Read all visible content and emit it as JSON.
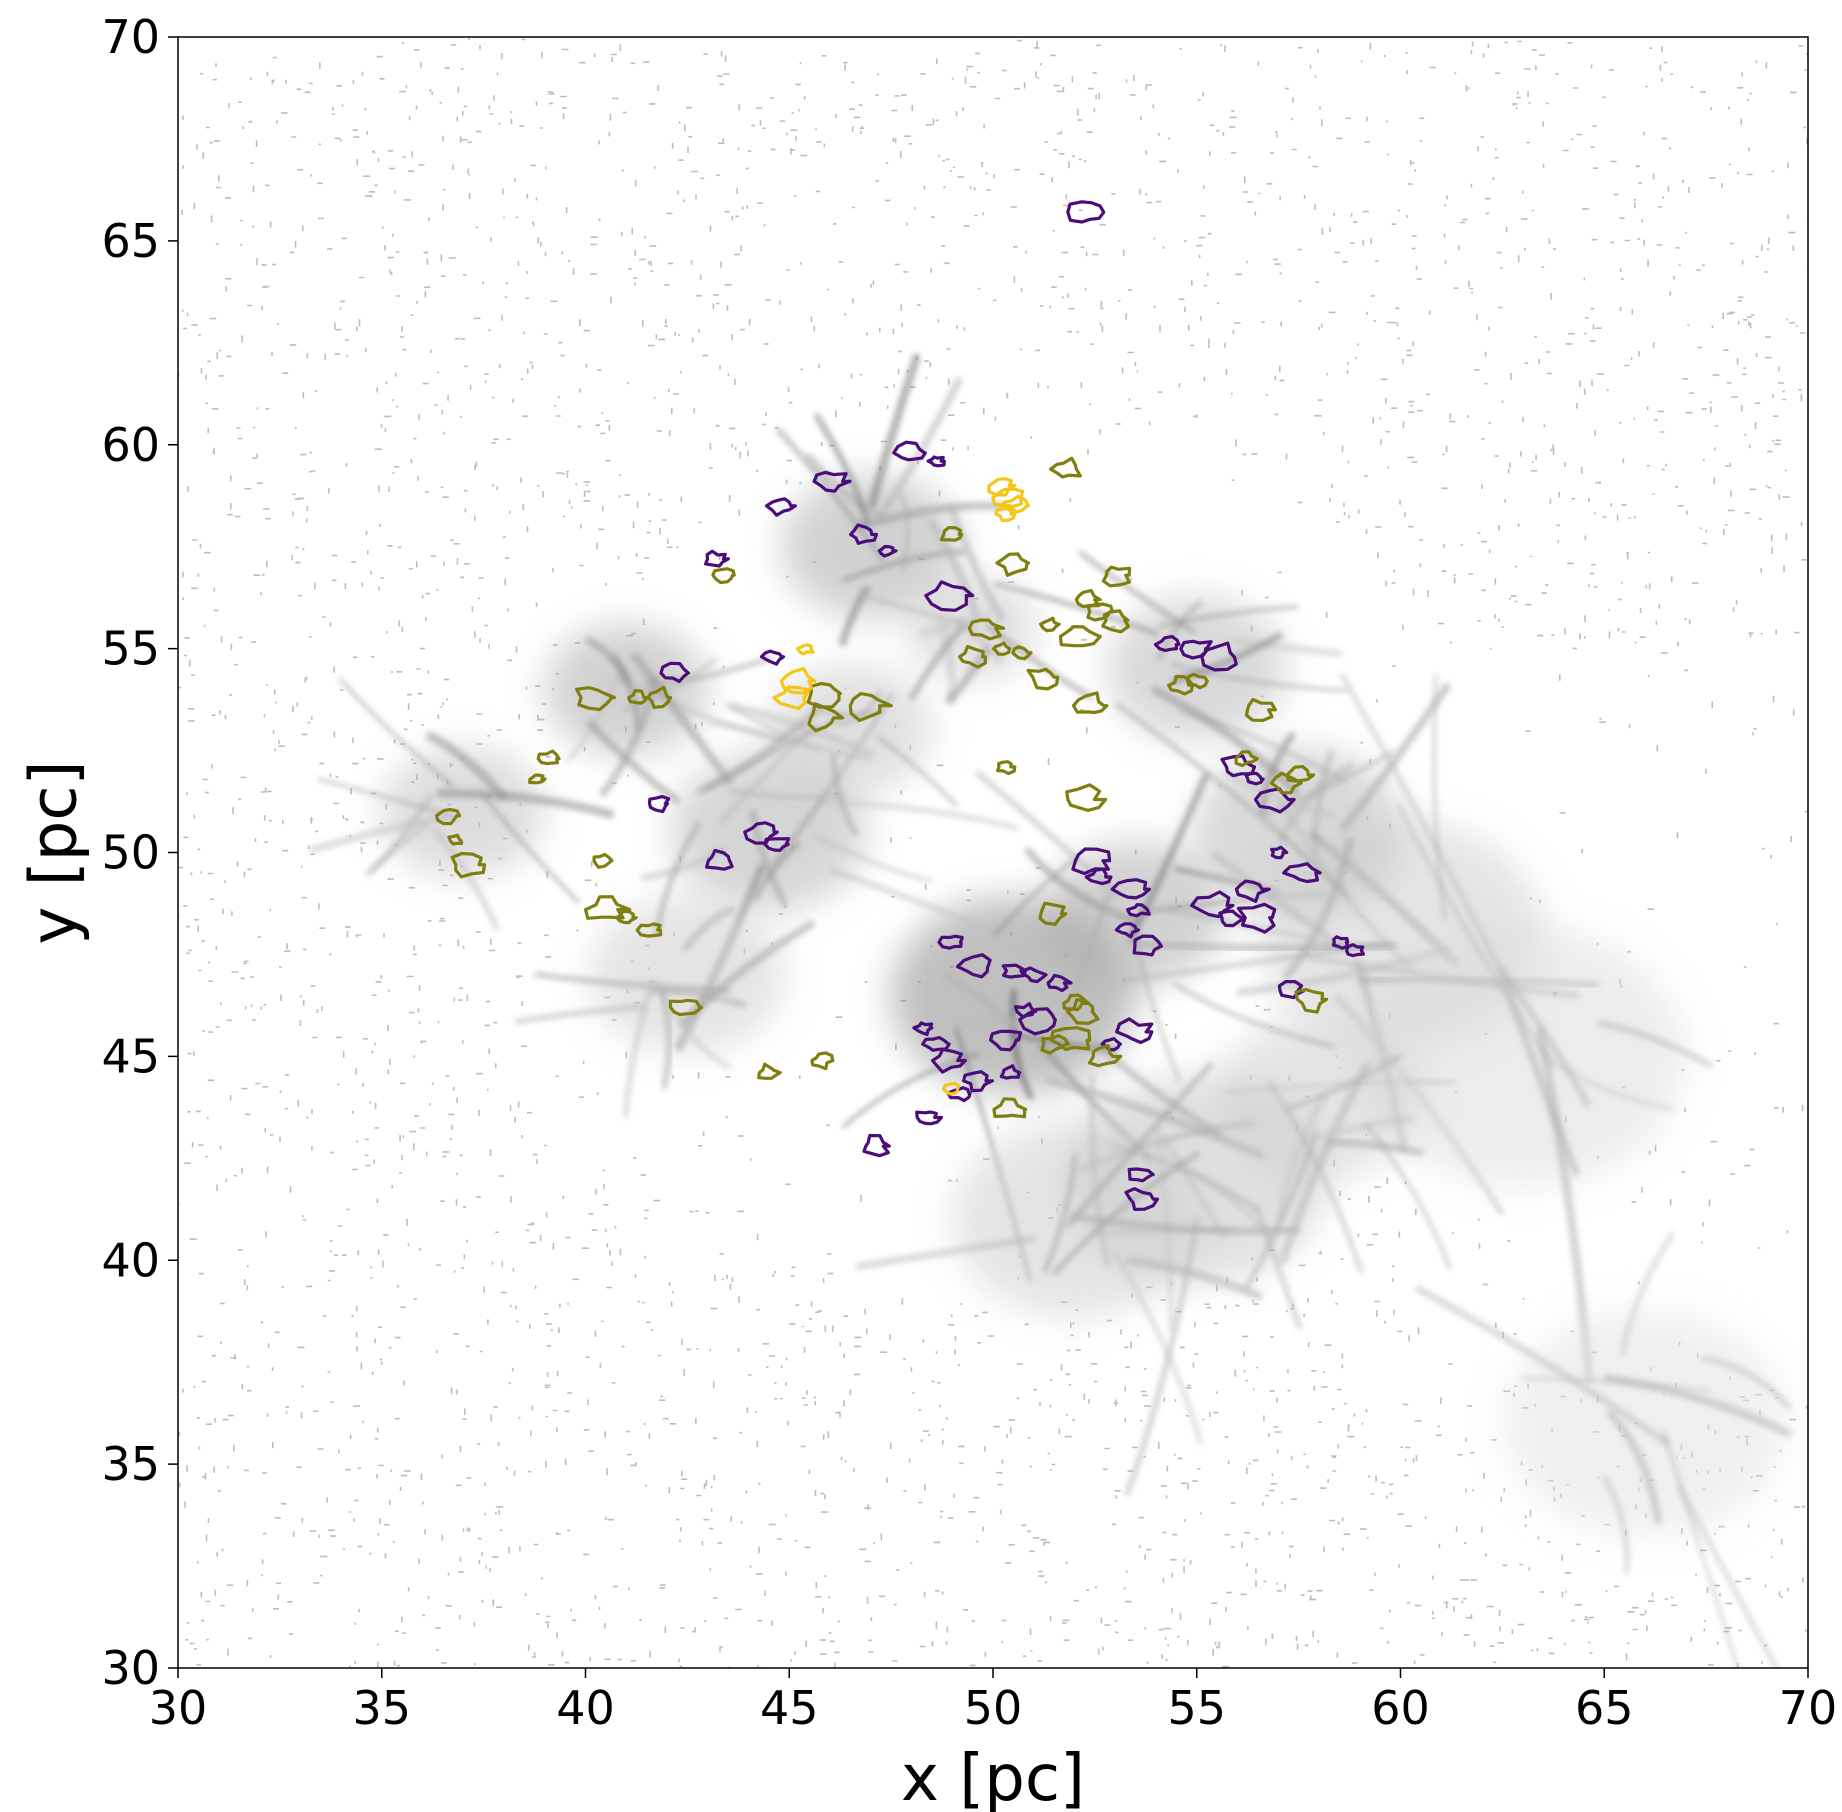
{
  "chart_data": {
    "type": "heatmap",
    "title": "",
    "xlabel": "x [pc]",
    "ylabel": "y [pc]",
    "xlim": [
      30,
      70
    ],
    "ylim": [
      30,
      70
    ],
    "xticks": [
      30,
      35,
      40,
      45,
      50,
      55,
      60,
      65,
      70
    ],
    "yticks": [
      30,
      35,
      40,
      45,
      50,
      55,
      60,
      65,
      70
    ],
    "grid": false,
    "legend": "none",
    "colormap": "greys",
    "colors": {
      "background": "#ffffff",
      "density_dark": "#3a3a3a",
      "low_density_contour": "#bdbdbd",
      "contour_purple": "#4b0d7a",
      "contour_olive": "#7f7f10",
      "contour_yellow": "#f5c518"
    },
    "density_features": [
      {
        "x": 50.5,
        "y": 46.5,
        "strength": 0.85,
        "r": 3.0
      },
      {
        "x": 47.0,
        "y": 57.5,
        "strength": 0.6,
        "r": 2.2
      },
      {
        "x": 41.0,
        "y": 54.0,
        "strength": 0.6,
        "r": 2.0
      },
      {
        "x": 44.5,
        "y": 50.5,
        "strength": 0.55,
        "r": 2.4
      },
      {
        "x": 53.5,
        "y": 48.5,
        "strength": 0.6,
        "r": 2.2
      },
      {
        "x": 57.5,
        "y": 50.5,
        "strength": 0.5,
        "r": 2.6
      },
      {
        "x": 55.0,
        "y": 54.5,
        "strength": 0.5,
        "r": 2.2
      },
      {
        "x": 60.0,
        "y": 48.0,
        "strength": 0.35,
        "r": 3.5
      },
      {
        "x": 55.0,
        "y": 42.0,
        "strength": 0.4,
        "r": 3.2
      },
      {
        "x": 52.0,
        "y": 41.0,
        "strength": 0.35,
        "r": 3.0
      },
      {
        "x": 37.0,
        "y": 51.0,
        "strength": 0.45,
        "r": 2.0
      },
      {
        "x": 42.5,
        "y": 47.0,
        "strength": 0.35,
        "r": 2.4
      },
      {
        "x": 46.5,
        "y": 53.0,
        "strength": 0.4,
        "r": 2.0
      },
      {
        "x": 63.0,
        "y": 45.0,
        "strength": 0.25,
        "r": 4.0
      },
      {
        "x": 66.0,
        "y": 36.0,
        "strength": 0.2,
        "r": 3.5
      },
      {
        "x": 49.5,
        "y": 55.5,
        "strength": 0.4,
        "r": 1.6
      },
      {
        "x": 58.0,
        "y": 44.0,
        "strength": 0.35,
        "r": 2.5
      }
    ],
    "contours": {
      "purple": [
        [
          52.3,
          65.7
        ],
        [
          48.0,
          59.8
        ],
        [
          48.6,
          59.6
        ],
        [
          46.0,
          59.1
        ],
        [
          44.8,
          58.5
        ],
        [
          46.8,
          57.8
        ],
        [
          47.4,
          57.4
        ],
        [
          43.2,
          57.2
        ],
        [
          48.9,
          56.3
        ],
        [
          44.6,
          54.8
        ],
        [
          42.2,
          54.4
        ],
        [
          54.3,
          55.1
        ],
        [
          55.0,
          55.0
        ],
        [
          55.6,
          54.8
        ],
        [
          56.0,
          52.1
        ],
        [
          56.4,
          51.8
        ],
        [
          56.9,
          51.3
        ],
        [
          57.0,
          50.0
        ],
        [
          57.6,
          49.5
        ],
        [
          56.3,
          49.1
        ],
        [
          41.8,
          51.2
        ],
        [
          43.3,
          49.8
        ],
        [
          44.3,
          50.5
        ],
        [
          44.7,
          50.2
        ],
        [
          53.4,
          49.1
        ],
        [
          53.6,
          48.6
        ],
        [
          53.3,
          48.1
        ],
        [
          53.8,
          47.7
        ],
        [
          55.4,
          48.7
        ],
        [
          55.8,
          48.4
        ],
        [
          56.5,
          48.4
        ],
        [
          58.5,
          47.8
        ],
        [
          58.9,
          47.6
        ],
        [
          57.3,
          46.6
        ],
        [
          49.0,
          47.8
        ],
        [
          49.6,
          47.2
        ],
        [
          50.5,
          47.1
        ],
        [
          51.0,
          47.0
        ],
        [
          51.6,
          46.8
        ],
        [
          51.2,
          45.9
        ],
        [
          50.8,
          46.1
        ],
        [
          48.3,
          45.7
        ],
        [
          48.6,
          45.3
        ],
        [
          48.9,
          44.9
        ],
        [
          50.3,
          45.4
        ],
        [
          50.4,
          44.6
        ],
        [
          49.6,
          44.4
        ],
        [
          49.2,
          44.1
        ],
        [
          48.4,
          43.5
        ],
        [
          53.5,
          45.6
        ],
        [
          52.9,
          45.3
        ],
        [
          53.6,
          42.1
        ],
        [
          53.6,
          41.5
        ],
        [
          47.1,
          42.8
        ],
        [
          52.4,
          49.8
        ],
        [
          52.6,
          49.4
        ]
      ],
      "olive": [
        [
          51.8,
          59.4
        ],
        [
          49.0,
          57.8
        ],
        [
          50.5,
          57.1
        ],
        [
          53.0,
          56.8
        ],
        [
          43.4,
          56.8
        ],
        [
          52.3,
          56.2
        ],
        [
          52.6,
          55.9
        ],
        [
          51.4,
          55.6
        ],
        [
          52.1,
          55.3
        ],
        [
          53.0,
          55.7
        ],
        [
          49.8,
          55.5
        ],
        [
          50.2,
          55.0
        ],
        [
          50.7,
          54.9
        ],
        [
          49.5,
          54.8
        ],
        [
          51.2,
          54.3
        ],
        [
          52.4,
          53.6
        ],
        [
          54.6,
          54.1
        ],
        [
          55.0,
          54.2
        ],
        [
          41.3,
          53.8
        ],
        [
          41.8,
          53.8
        ],
        [
          40.2,
          53.8
        ],
        [
          45.9,
          53.9
        ],
        [
          46.9,
          53.6
        ],
        [
          45.8,
          53.3
        ],
        [
          39.1,
          52.3
        ],
        [
          38.8,
          51.8
        ],
        [
          50.3,
          52.1
        ],
        [
          52.2,
          51.3
        ],
        [
          36.6,
          50.9
        ],
        [
          36.8,
          50.3
        ],
        [
          37.1,
          49.7
        ],
        [
          56.2,
          52.3
        ],
        [
          57.2,
          51.7
        ],
        [
          57.5,
          51.9
        ],
        [
          56.5,
          53.5
        ],
        [
          40.4,
          49.8
        ],
        [
          40.5,
          48.6
        ],
        [
          41.0,
          48.4
        ],
        [
          41.6,
          48.1
        ],
        [
          42.4,
          46.2
        ],
        [
          44.5,
          44.6
        ],
        [
          45.8,
          44.9
        ],
        [
          52.0,
          46.3
        ],
        [
          52.2,
          46.1
        ],
        [
          51.5,
          45.3
        ],
        [
          51.9,
          45.4
        ],
        [
          52.7,
          45.0
        ],
        [
          50.4,
          43.7
        ],
        [
          57.8,
          46.4
        ],
        [
          51.4,
          48.5
        ]
      ],
      "yellow": [
        [
          50.2,
          59.0
        ],
        [
          50.4,
          58.7
        ],
        [
          50.3,
          58.3
        ],
        [
          50.5,
          58.5
        ],
        [
          45.4,
          55.0
        ],
        [
          45.2,
          54.2
        ],
        [
          45.1,
          53.8
        ],
        [
          49.0,
          44.2
        ]
      ]
    }
  }
}
